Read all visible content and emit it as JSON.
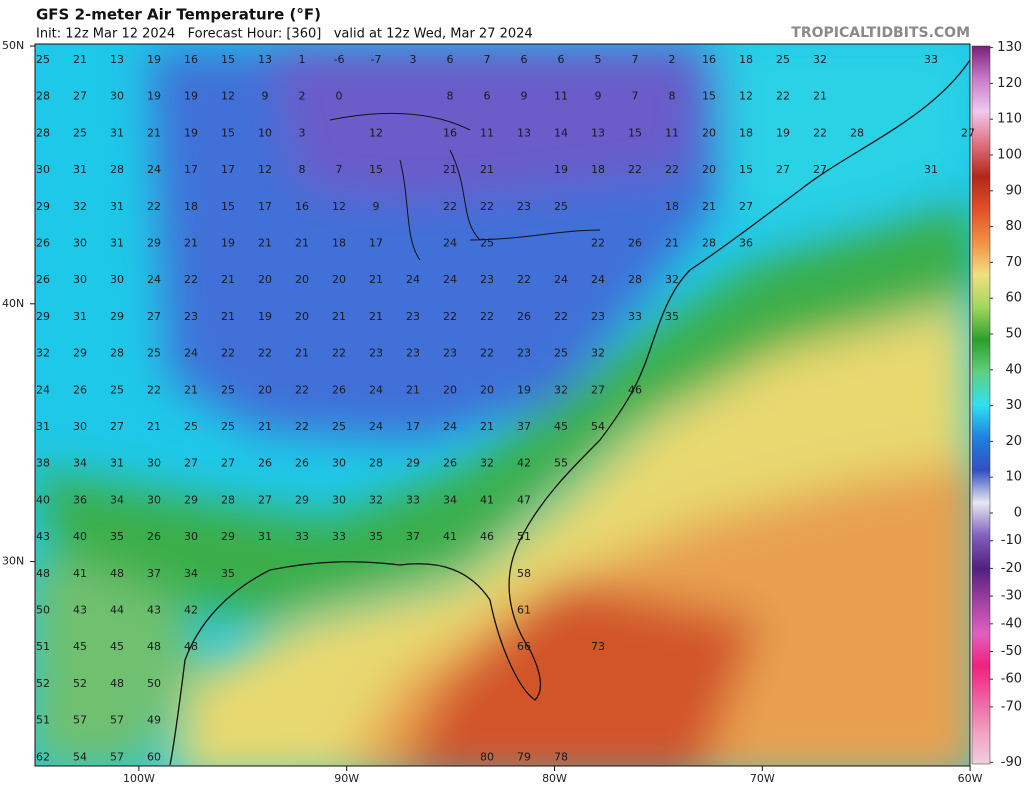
{
  "header": {
    "title": "GFS 2-meter Air Temperature (°F)",
    "subtitle": "Init: 12z Mar 12 2024   Forecast Hour: [360]   valid at 12z Wed, Mar 27 2024",
    "brand": "TROPICALTIDBITS.COM"
  },
  "map": {
    "lat_ticks": [
      {
        "value": 50,
        "label": "50N"
      },
      {
        "value": 40,
        "label": "40N"
      },
      {
        "value": 30,
        "label": "30N"
      }
    ],
    "lon_ticks": [
      {
        "value": -100,
        "label": "100W"
      },
      {
        "value": -90,
        "label": "90W"
      },
      {
        "value": -80,
        "label": "80W"
      },
      {
        "value": -70,
        "label": "70W"
      },
      {
        "value": -60,
        "label": "60W"
      }
    ],
    "station_rows": [
      [
        25,
        21,
        13,
        19,
        16,
        15,
        13,
        1,
        -6,
        -7,
        3,
        6,
        7,
        6,
        6,
        5,
        7,
        2,
        16,
        18,
        25,
        32,
        null,
        null,
        33,
        null
      ],
      [
        28,
        27,
        30,
        19,
        19,
        12,
        9,
        2,
        0,
        null,
        null,
        8,
        6,
        9,
        11,
        9,
        7,
        8,
        15,
        12,
        22,
        21,
        null,
        null,
        null,
        null
      ],
      [
        28,
        25,
        31,
        21,
        19,
        15,
        10,
        3,
        null,
        12,
        null,
        16,
        11,
        13,
        14,
        13,
        15,
        11,
        20,
        18,
        19,
        22,
        28,
        null,
        null,
        27
      ],
      [
        30,
        31,
        28,
        24,
        17,
        17,
        12,
        8,
        7,
        15,
        null,
        21,
        21,
        null,
        19,
        18,
        22,
        22,
        20,
        15,
        27,
        27,
        null,
        null,
        31,
        null
      ],
      [
        29,
        32,
        31,
        22,
        18,
        15,
        17,
        16,
        12,
        9,
        null,
        22,
        22,
        23,
        25,
        null,
        null,
        18,
        21,
        27,
        null,
        null,
        null,
        null,
        null,
        null
      ],
      [
        26,
        30,
        31,
        29,
        21,
        19,
        21,
        21,
        18,
        17,
        null,
        24,
        25,
        null,
        null,
        22,
        26,
        21,
        28,
        36,
        null,
        null,
        null,
        null,
        null,
        null
      ],
      [
        26,
        30,
        30,
        24,
        22,
        21,
        20,
        20,
        20,
        21,
        24,
        24,
        23,
        22,
        24,
        24,
        28,
        32,
        null,
        null,
        null,
        null,
        null,
        null,
        null,
        null
      ],
      [
        29,
        31,
        29,
        27,
        23,
        21,
        19,
        20,
        21,
        21,
        23,
        22,
        22,
        26,
        22,
        23,
        33,
        35,
        null,
        null,
        null,
        null,
        null,
        null,
        null,
        null
      ],
      [
        32,
        29,
        28,
        25,
        24,
        22,
        22,
        21,
        22,
        23,
        23,
        23,
        22,
        23,
        25,
        32,
        null,
        null,
        null,
        null,
        null,
        null,
        null,
        null,
        null,
        null
      ],
      [
        24,
        26,
        25,
        22,
        21,
        25,
        20,
        22,
        26,
        24,
        21,
        20,
        20,
        19,
        32,
        27,
        46,
        null,
        null,
        null,
        null,
        null,
        null,
        null,
        null,
        null
      ],
      [
        31,
        30,
        27,
        21,
        25,
        25,
        21,
        22,
        25,
        24,
        17,
        24,
        21,
        37,
        45,
        54,
        null,
        null,
        null,
        null,
        null,
        null,
        null,
        null,
        null,
        null
      ],
      [
        38,
        34,
        31,
        30,
        27,
        27,
        26,
        26,
        30,
        28,
        29,
        26,
        32,
        42,
        55,
        null,
        null,
        null,
        null,
        null,
        null,
        null,
        null,
        null,
        null,
        null
      ],
      [
        40,
        36,
        34,
        30,
        29,
        28,
        27,
        29,
        30,
        32,
        33,
        34,
        41,
        47,
        null,
        null,
        null,
        null,
        null,
        null,
        null,
        null,
        null,
        null,
        null,
        null
      ],
      [
        43,
        40,
        35,
        26,
        30,
        29,
        31,
        33,
        33,
        35,
        37,
        41,
        46,
        51,
        null,
        null,
        null,
        null,
        null,
        null,
        null,
        null,
        null,
        null,
        null,
        null
      ],
      [
        48,
        41,
        48,
        37,
        34,
        35,
        null,
        null,
        null,
        null,
        null,
        null,
        null,
        58,
        null,
        null,
        null,
        null,
        null,
        null,
        null,
        null,
        null,
        null,
        null,
        null
      ],
      [
        50,
        43,
        44,
        43,
        42,
        null,
        null,
        null,
        null,
        null,
        null,
        null,
        null,
        61,
        null,
        null,
        null,
        null,
        null,
        null,
        null,
        null,
        null,
        null,
        null,
        null
      ],
      [
        51,
        45,
        45,
        48,
        48,
        null,
        null,
        null,
        null,
        null,
        null,
        null,
        null,
        66,
        null,
        73,
        null,
        null,
        null,
        null,
        null,
        null,
        null,
        null,
        null,
        null
      ],
      [
        52,
        52,
        48,
        50,
        null,
        null,
        null,
        null,
        null,
        null,
        null,
        null,
        null,
        null,
        null,
        null,
        null,
        null,
        null,
        null,
        null,
        null,
        null,
        null,
        null,
        null
      ],
      [
        51,
        57,
        57,
        49,
        null,
        null,
        null,
        null,
        null,
        null,
        null,
        null,
        null,
        null,
        null,
        null,
        null,
        null,
        null,
        null,
        null,
        null,
        null,
        null,
        null,
        null
      ],
      [
        62,
        54,
        57,
        60,
        null,
        null,
        null,
        null,
        null,
        null,
        null,
        null,
        80,
        79,
        78,
        null,
        null,
        null,
        null,
        null,
        null,
        null,
        null,
        null,
        null,
        null
      ]
    ]
  },
  "colorbar": {
    "ticks": [
      130,
      120,
      110,
      100,
      90,
      80,
      70,
      60,
      50,
      40,
      30,
      20,
      10,
      0,
      -10,
      -20,
      -30,
      -40,
      -50,
      -60,
      -70,
      -90
    ],
    "colors": [
      "#7a1f7a",
      "#c87ac8",
      "#f0c8f0",
      "#e07080",
      "#b02818",
      "#e0502a",
      "#f09040",
      "#f0e080",
      "#a0d860",
      "#2aa02a",
      "#60d080",
      "#30e0f0",
      "#2080e0",
      "#3050c0",
      "#e8e8f0",
      "#8060c0",
      "#502080",
      "#a040a0",
      "#e060c0",
      "#f02080",
      "#f060a0",
      "#f0a0c0",
      "#f0d0e0"
    ]
  }
}
